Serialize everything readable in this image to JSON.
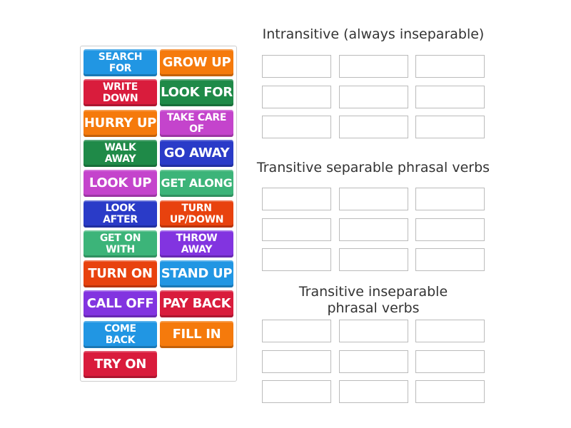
{
  "tiles": [
    {
      "label": "SEARCH FOR",
      "color": "#2196e3",
      "size": 14
    },
    {
      "label": "GROW UP",
      "color": "#f57a0c",
      "size": 18
    },
    {
      "label": "WRITE DOWN",
      "color": "#d91c3c",
      "size": 14
    },
    {
      "label": "LOOK FOR",
      "color": "#1f8a48",
      "size": 18
    },
    {
      "label": "HURRY UP",
      "color": "#f57a0c",
      "size": 18
    },
    {
      "label": "TAKE CARE OF",
      "color": "#c444cc",
      "size": 14
    },
    {
      "label": "WALK AWAY",
      "color": "#1f8a48",
      "size": 14
    },
    {
      "label": "GO AWAY",
      "color": "#2a3bc8",
      "size": 18
    },
    {
      "label": "LOOK UP",
      "color": "#c444cc",
      "size": 18
    },
    {
      "label": "GET ALONG",
      "color": "#3cb479",
      "size": 16
    },
    {
      "label": "LOOK AFTER",
      "color": "#2a3bc8",
      "size": 14
    },
    {
      "label": "TURN UP/DOWN",
      "color": "#e8420e",
      "size": 14
    },
    {
      "label": "GET ON WITH",
      "color": "#3cb479",
      "size": 14
    },
    {
      "label": "THROW AWAY",
      "color": "#8234e0",
      "size": 14
    },
    {
      "label": "TURN ON",
      "color": "#e8420e",
      "size": 18
    },
    {
      "label": "STAND UP",
      "color": "#2196e3",
      "size": 18
    },
    {
      "label": "CALL OFF",
      "color": "#8234e0",
      "size": 18
    },
    {
      "label": "PAY BACK",
      "color": "#d91c3c",
      "size": 18
    },
    {
      "label": "COME BACK",
      "color": "#2196e3",
      "size": 14
    },
    {
      "label": "FILL IN",
      "color": "#f57a0c",
      "size": 18
    },
    {
      "label": "TRY ON",
      "color": "#d91c3c",
      "size": 18
    }
  ],
  "groups": [
    {
      "title": "Intransitive (always inseparable)"
    },
    {
      "title": "Transitive separable phrasal verbs"
    },
    {
      "title": "Transitive inseparable phrasal verbs"
    }
  ]
}
